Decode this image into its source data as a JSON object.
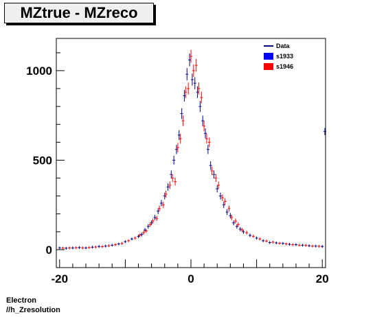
{
  "chart_data": {
    "type": "scatter",
    "title": "MZtrue - MZreco",
    "xlim": [
      -20.5,
      20.5
    ],
    "ylim": [
      -100,
      1180
    ],
    "x_ticks": [
      -20,
      0,
      20
    ],
    "y_ticks": [
      0,
      500,
      1000
    ],
    "legend_placement": "top-right",
    "grid": false,
    "legend": [
      {
        "name": "Data",
        "style": "line",
        "color": "#000080"
      },
      {
        "name": "s1933",
        "style": "box",
        "color": "#0000ff"
      },
      {
        "name": "s1946",
        "style": "box",
        "color": "#ff0000"
      }
    ],
    "series": [
      {
        "name": "s1933",
        "color": "#000080",
        "x": [
          -20.0,
          -19.0,
          -18.0,
          -17.0,
          -16.0,
          -15.0,
          -14.0,
          -13.0,
          -12.0,
          -11.0,
          -10.0,
          -9.0,
          -8.0,
          -7.5,
          -7.0,
          -6.5,
          -6.0,
          -5.5,
          -5.0,
          -4.5,
          -4.0,
          -3.5,
          -3.0,
          -2.6,
          -2.2,
          -1.8,
          -1.4,
          -1.0,
          -0.6,
          -0.2,
          0.2,
          0.6,
          1.0,
          1.4,
          1.8,
          2.2,
          2.6,
          3.0,
          3.5,
          4.0,
          4.5,
          5.0,
          5.5,
          6.0,
          6.5,
          7.0,
          7.5,
          8.0,
          9.0,
          10.0,
          11.0,
          12.0,
          13.0,
          14.0,
          15.0,
          16.0,
          17.0,
          18.0,
          19.0,
          20.0
        ],
        "y": [
          10,
          8,
          10,
          12,
          10,
          14,
          18,
          20,
          25,
          32,
          45,
          60,
          75,
          85,
          110,
          130,
          150,
          180,
          215,
          260,
          300,
          350,
          420,
          500,
          560,
          640,
          760,
          860,
          980,
          1060,
          950,
          930,
          880,
          800,
          720,
          650,
          560,
          470,
          420,
          340,
          300,
          250,
          210,
          190,
          150,
          130,
          115,
          100,
          80,
          65,
          50,
          40,
          38,
          35,
          30,
          28,
          25,
          22,
          20,
          18
        ]
      },
      {
        "name": "s1946",
        "color": "#ff0000",
        "x": [
          -19.5,
          -18.5,
          -17.5,
          -16.5,
          -15.5,
          -14.5,
          -13.5,
          -12.5,
          -11.5,
          -10.5,
          -9.5,
          -8.5,
          -7.8,
          -7.2,
          -6.8,
          -6.2,
          -5.8,
          -5.2,
          -4.8,
          -4.2,
          -3.8,
          -3.2,
          -2.8,
          -2.4,
          -2.0,
          -1.6,
          -1.2,
          -0.8,
          -0.4,
          0.0,
          0.4,
          0.8,
          1.2,
          1.6,
          2.0,
          2.4,
          2.8,
          3.2,
          3.8,
          4.2,
          4.8,
          5.2,
          5.8,
          6.2,
          6.8,
          7.2,
          7.8,
          8.5,
          9.5,
          10.5,
          11.5,
          12.5,
          13.5,
          14.5,
          15.5,
          16.5,
          17.5,
          18.5,
          19.5
        ],
        "y": [
          9,
          10,
          11,
          10,
          12,
          15,
          17,
          22,
          28,
          35,
          50,
          65,
          80,
          95,
          105,
          140,
          160,
          175,
          230,
          250,
          310,
          360,
          400,
          380,
          570,
          620,
          720,
          880,
          900,
          1080,
          1000,
          1030,
          900,
          850,
          690,
          620,
          600,
          440,
          400,
          360,
          290,
          270,
          230,
          180,
          160,
          140,
          110,
          95,
          75,
          60,
          48,
          42,
          36,
          32,
          28,
          25,
          24,
          20,
          19
        ]
      }
    ],
    "overflow_point": {
      "x": 20.5,
      "y": 660
    }
  },
  "footer": {
    "line1": "Electron",
    "line2": "//h_Zresolution"
  }
}
